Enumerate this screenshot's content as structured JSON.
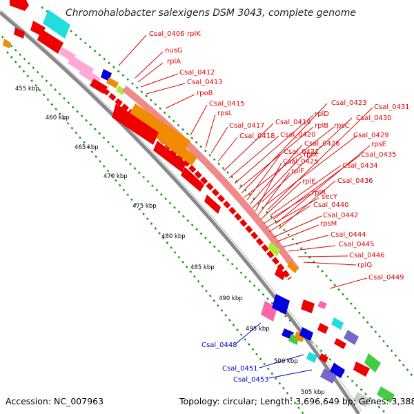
{
  "title": "Chromohalobacter salexigens DSM 3043, complete genome",
  "accession": "Accession: NC_007963",
  "summary": "Topology: circular; Length: 3,696,649 bp; Genes: 3,388",
  "scale_labels": [
    "455 kbp",
    "460 kbp",
    "465 kbp",
    "470 kbp",
    "475 kbp",
    "480 kbp",
    "485 kbp",
    "490 kbp",
    "495 kbp",
    "500 kbp",
    "505 kbp"
  ],
  "gene_labels_red": [
    "Csal_0406",
    "rplK",
    "nusG",
    "rplA",
    "Csal_0412",
    "Csal_0413",
    "rpoB",
    "Csal_0415",
    "rpsL",
    "Csal_0417",
    "Csal_0418",
    "Csal_0419",
    "Csal_0420",
    "rplD",
    "rplB",
    "Csal_0423",
    "rpsC",
    "Csal_0421",
    "Csal_0426",
    "rplX",
    "Csal_0425",
    "rplF",
    "rplE",
    "rplR",
    "secY",
    "Csal_0440",
    "Csal_0442",
    "rpsM",
    "Csal_0444",
    "Csal_0445",
    "Csal_0446",
    "rplQ",
    "Csal_0449",
    "Csal_0429",
    "Csal_0430",
    "Csal_0431",
    "Csal_0434",
    "Csal_0435",
    "rpsE",
    "Csal_0436"
  ],
  "gene_labels_blue": [
    "Csal_0448",
    "Csal_0451",
    "Csal_0453"
  ],
  "colors": {
    "red": "#ee0000",
    "pink_light": "#f08a8a",
    "orange": "#f08c00",
    "cyan": "#22dddd",
    "pink": "#ff66aa",
    "light_pink": "#ffaad4",
    "blue": "#0000dd",
    "green": "#44cc44",
    "purple": "#7766cc",
    "yellow_green": "#aaee33",
    "track": "#888888",
    "tick": "#229922",
    "label_red": "#e00000",
    "label_blue": "#0000c8"
  }
}
